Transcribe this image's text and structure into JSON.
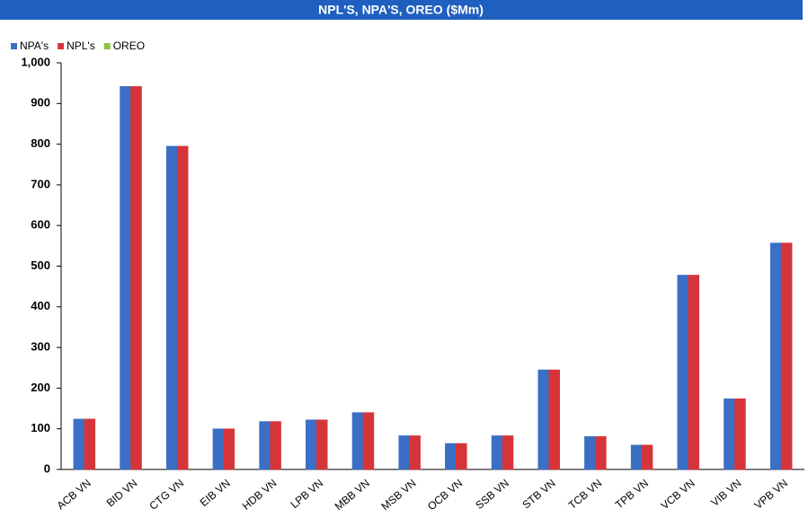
{
  "chart_data": {
    "type": "bar",
    "title": "NPL'S, NPA'S, OREO ($Mm)",
    "categories": [
      "ACB VN",
      "BID VN",
      "CTG VN",
      "EIB VN",
      "HDB VN",
      "LPB VN",
      "MBB VN",
      "MSB VN",
      "OCB VN",
      "SSB VN",
      "STB VN",
      "TCB VN",
      "TPB VN",
      "VCB VN",
      "VIB VN",
      "VPB VN"
    ],
    "series": [
      {
        "name": "NPA's",
        "color": "#3b6fc6",
        "values": [
          124,
          942,
          795,
          100,
          118,
          122,
          140,
          83,
          64,
          83,
          245,
          81,
          60,
          478,
          174,
          557
        ]
      },
      {
        "name": "NPL's",
        "color": "#d6343b",
        "values": [
          124,
          942,
          795,
          100,
          118,
          122,
          140,
          83,
          64,
          83,
          245,
          81,
          60,
          478,
          174,
          557
        ]
      },
      {
        "name": "OREO",
        "color": "#8cc43f",
        "values": [
          0,
          0,
          0,
          0,
          0,
          0,
          0,
          0,
          0,
          0,
          0,
          0,
          0,
          0,
          0,
          0
        ]
      }
    ],
    "ylim": [
      0,
      1000
    ],
    "yticks": [
      0,
      100,
      200,
      300,
      400,
      500,
      600,
      700,
      800,
      900,
      {
        "value": 1000,
        "label": "1,000"
      }
    ],
    "legend": "top-left"
  }
}
